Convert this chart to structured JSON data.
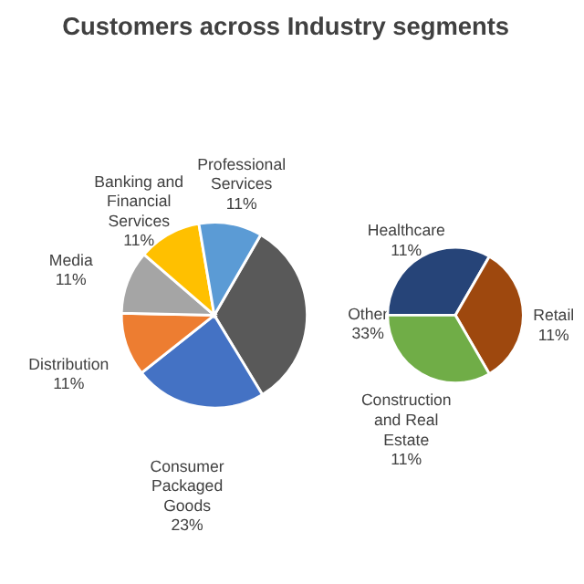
{
  "chart_data": [
    {
      "type": "pie",
      "title": "Customers across Industry segments",
      "categories": [
        "Other",
        "Consumer Packaged Goods",
        "Distribution",
        "Media",
        "Banking and Financial Services",
        "Professional Services"
      ],
      "values": [
        33,
        23,
        11,
        11,
        11,
        11
      ],
      "value_labels": [
        "33%",
        "23%",
        "11%",
        "11%",
        "11%",
        "11%"
      ],
      "colors": [
        "#595959",
        "#4472c4",
        "#ed7d31",
        "#a5a5a5",
        "#ffc000",
        "#5b9bd5"
      ]
    },
    {
      "type": "pie",
      "categories": [
        "Healthcare",
        "Retail",
        "Construction and Real Estate"
      ],
      "values": [
        11,
        11,
        11
      ],
      "value_labels": [
        "11%",
        "11%",
        "11%"
      ],
      "colors": [
        "#264478",
        "#9e480e",
        "#70ad47"
      ]
    }
  ]
}
